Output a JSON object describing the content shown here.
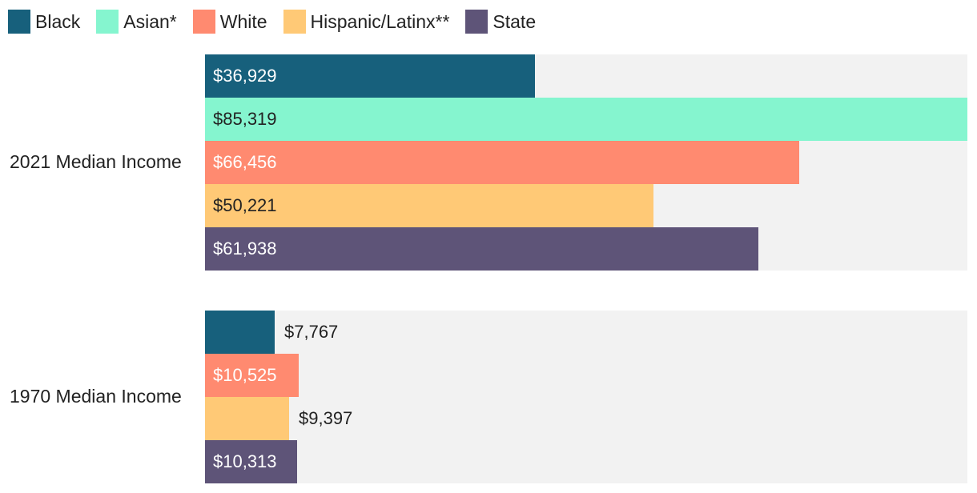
{
  "chart_data": {
    "type": "bar",
    "orientation": "horizontal",
    "legend_position": "top-left",
    "grid": false,
    "xlim": [
      0,
      85319
    ],
    "legend": [
      {
        "key": "Black",
        "label": "Black",
        "color": "#17607c"
      },
      {
        "key": "Asian",
        "label": "Asian*",
        "color": "#85f5cf"
      },
      {
        "key": "White",
        "label": "White",
        "color": "#ff8a70"
      },
      {
        "key": "Hispanic",
        "label": "Hispanic/Latinx**",
        "color": "#ffc976"
      },
      {
        "key": "State",
        "label": "State",
        "color": "#5e5478"
      }
    ],
    "groups": [
      {
        "label": "2021 Median Income",
        "bars": [
          {
            "series": "Black",
            "value": 36929,
            "label": "$36,929",
            "text_color": "#ffffff"
          },
          {
            "series": "Asian",
            "value": 85319,
            "label": "$85,319",
            "text_color": "#222222"
          },
          {
            "series": "White",
            "value": 66456,
            "label": "$66,456",
            "text_color": "#ffffff"
          },
          {
            "series": "Hispanic",
            "value": 50221,
            "label": "$50,221",
            "text_color": "#222222"
          },
          {
            "series": "State",
            "value": 61938,
            "label": "$61,938",
            "text_color": "#ffffff"
          }
        ]
      },
      {
        "label": "1970 Median Income",
        "bars": [
          {
            "series": "Black",
            "value": 7767,
            "label": "$7,767",
            "text_color": "#222222"
          },
          {
            "series": "White",
            "value": 10525,
            "label": "$10,525",
            "text_color": "#ffffff"
          },
          {
            "series": "Hispanic",
            "value": 9397,
            "label": "$9,397",
            "text_color": "#222222"
          },
          {
            "series": "State",
            "value": 10313,
            "label": "$10,313",
            "text_color": "#ffffff"
          }
        ]
      }
    ]
  }
}
